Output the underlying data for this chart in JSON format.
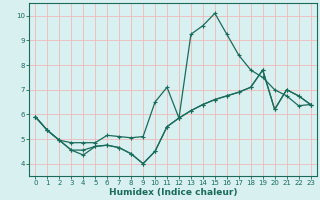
{
  "xlabel": "Humidex (Indice chaleur)",
  "bg_color": "#d9f0f0",
  "grid_color": "#f0b8b8",
  "line_color": "#1a6b5a",
  "xlim": [
    -0.5,
    23.5
  ],
  "ylim": [
    3.5,
    10.5
  ],
  "xticks": [
    0,
    1,
    2,
    3,
    4,
    5,
    6,
    7,
    8,
    9,
    10,
    11,
    12,
    13,
    14,
    15,
    16,
    17,
    18,
    19,
    20,
    21,
    22,
    23
  ],
  "yticks": [
    4,
    5,
    6,
    7,
    8,
    9,
    10
  ],
  "line1_x": [
    0,
    1,
    2,
    3,
    4,
    5,
    6,
    7,
    8,
    9,
    10,
    11,
    12,
    13,
    14,
    15,
    16,
    17,
    18,
    19,
    20,
    21,
    22,
    23
  ],
  "line1_y": [
    5.9,
    5.35,
    4.95,
    4.55,
    4.35,
    4.7,
    4.75,
    4.65,
    4.4,
    4.0,
    4.5,
    5.5,
    5.85,
    9.25,
    9.6,
    10.1,
    9.25,
    8.4,
    7.8,
    7.5,
    7.0,
    6.75,
    6.35,
    6.4
  ],
  "line2_x": [
    0,
    1,
    2,
    3,
    4,
    5,
    6,
    7,
    8,
    9,
    10,
    11,
    12,
    13,
    14,
    15,
    16,
    17,
    18,
    19,
    20,
    21,
    22,
    23
  ],
  "line2_y": [
    5.9,
    5.35,
    4.95,
    4.85,
    4.85,
    4.85,
    5.15,
    5.1,
    5.05,
    5.1,
    6.5,
    7.1,
    5.85,
    6.15,
    6.4,
    6.6,
    6.75,
    6.9,
    7.1,
    7.8,
    6.2,
    7.0,
    6.75,
    6.4
  ],
  "line3_x": [
    0,
    1,
    2,
    3,
    4,
    5,
    6,
    7,
    8,
    9,
    10,
    11,
    12,
    13,
    14,
    15,
    16,
    17,
    18,
    19,
    20,
    21,
    22,
    23
  ],
  "line3_y": [
    5.9,
    5.35,
    4.95,
    4.55,
    4.55,
    4.7,
    4.75,
    4.65,
    4.4,
    4.0,
    4.5,
    5.5,
    5.85,
    6.15,
    6.4,
    6.6,
    6.75,
    6.9,
    7.1,
    7.8,
    6.2,
    7.0,
    6.75,
    6.4
  ]
}
